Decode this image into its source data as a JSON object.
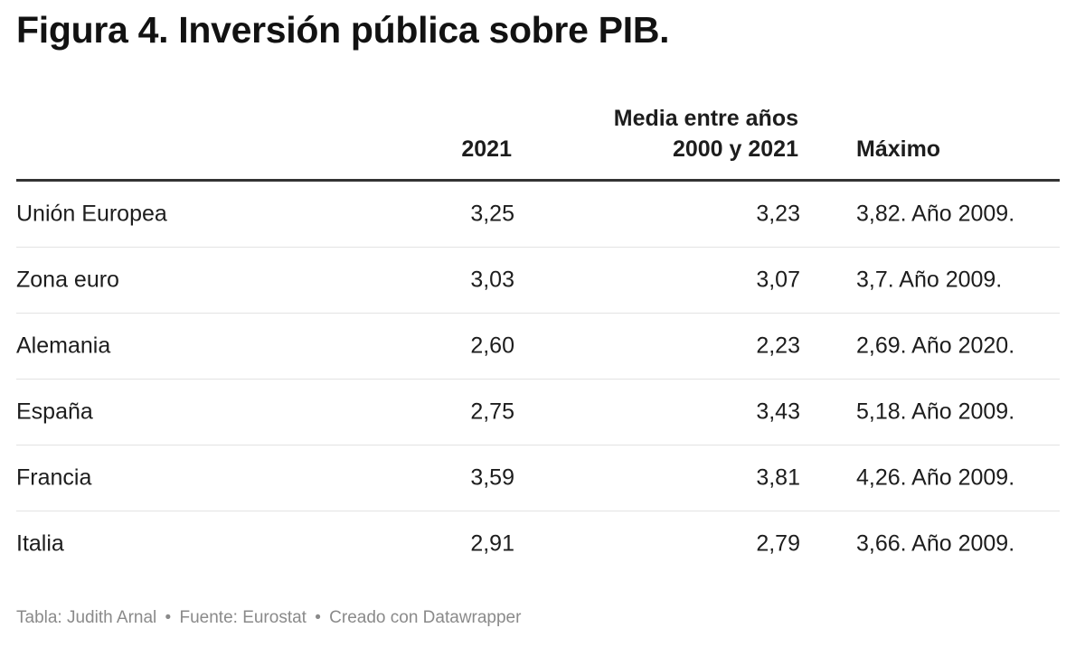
{
  "title": "Figura 4. Inversión pública sobre PIB.",
  "chart_data": {
    "type": "table",
    "title": "Figura 4. Inversión pública sobre PIB.",
    "columns": [
      "",
      "2021",
      "Media entre años 2000 y 2021",
      "Máximo"
    ],
    "header": {
      "col_2021": "2021",
      "col_media_line1": "Media entre años",
      "col_media_line2": "2000 y 2021",
      "col_max": "Máximo"
    },
    "rows": [
      {
        "name": "Unión Europea",
        "v2021": "3,25",
        "media": "3,23",
        "max": "3,82. Año 2009."
      },
      {
        "name": "Zona euro",
        "v2021": "3,03",
        "media": "3,07",
        "max": "3,7. Año 2009."
      },
      {
        "name": "Alemania",
        "v2021": "2,60",
        "media": "2,23",
        "max": "2,69. Año 2020."
      },
      {
        "name": "España",
        "v2021": "2,75",
        "media": "3,43",
        "max": "5,18. Año 2009."
      },
      {
        "name": "Francia",
        "v2021": "3,59",
        "media": "3,81",
        "max": "4,26. Año 2009."
      },
      {
        "name": "Italia",
        "v2021": "2,91",
        "media": "2,79",
        "max": "3,66. Año 2009."
      }
    ]
  },
  "footer": {
    "author": "Tabla: Judith Arnal",
    "source": "Fuente: Eurostat",
    "credit": "Creado con Datawrapper",
    "separator": "•"
  }
}
